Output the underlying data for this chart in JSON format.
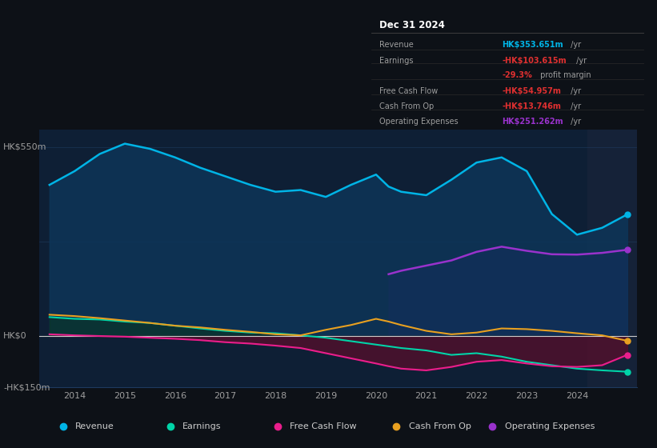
{
  "background_color": "#0d1117",
  "plot_bg_color": "#0e1f35",
  "grid_color": "#1e3a5f",
  "text_color": "#9e9e9e",
  "title_color": "#ffffff",
  "ylim": [
    -150,
    600
  ],
  "ylabel_top": "HK$550m",
  "ylabel_zero": "HK$0",
  "ylabel_bottom": "-HK$150m",
  "years": [
    2013.5,
    2014.0,
    2014.5,
    2015.0,
    2015.5,
    2016.0,
    2016.5,
    2017.0,
    2017.5,
    2018.0,
    2018.5,
    2019.0,
    2019.5,
    2020.0,
    2020.25,
    2020.5,
    2021.0,
    2021.5,
    2022.0,
    2022.5,
    2023.0,
    2023.5,
    2024.0,
    2024.5,
    2025.0
  ],
  "revenue": [
    440,
    480,
    530,
    560,
    545,
    520,
    490,
    465,
    440,
    420,
    425,
    405,
    440,
    470,
    435,
    420,
    410,
    455,
    505,
    520,
    480,
    355,
    295,
    315,
    354
  ],
  "earnings": [
    55,
    50,
    48,
    42,
    38,
    30,
    22,
    15,
    10,
    8,
    2,
    -5,
    -15,
    -25,
    -30,
    -35,
    -42,
    -55,
    -50,
    -60,
    -75,
    -85,
    -95,
    -100,
    -104
  ],
  "free_cash_flow": [
    5,
    2,
    0,
    -2,
    -5,
    -8,
    -12,
    -18,
    -22,
    -28,
    -35,
    -50,
    -65,
    -80,
    -88,
    -95,
    -100,
    -90,
    -75,
    -70,
    -80,
    -88,
    -90,
    -85,
    -55
  ],
  "cash_from_op": [
    62,
    58,
    52,
    45,
    38,
    30,
    25,
    18,
    12,
    5,
    2,
    18,
    32,
    50,
    42,
    32,
    15,
    5,
    10,
    22,
    20,
    15,
    8,
    2,
    -14
  ],
  "operating_expenses": [
    0,
    0,
    0,
    0,
    0,
    0,
    0,
    0,
    0,
    0,
    0,
    0,
    0,
    0,
    180,
    190,
    205,
    220,
    245,
    260,
    248,
    238,
    237,
    242,
    251
  ],
  "colors": {
    "revenue": "#00b4e6",
    "earnings": "#00d4a8",
    "free_cash_flow": "#e91e8c",
    "cash_from_op": "#e8a020",
    "operating_expenses": "#9932cc"
  },
  "fill_colors": {
    "revenue": "#0d3558",
    "earnings": "#0a3528",
    "free_cash_flow": "#5c0d2a",
    "operating_expenses": "#2e1060"
  },
  "info_box": {
    "title": "Dec 31 2024",
    "rows": [
      {
        "label": "Revenue",
        "value": "HK$353.651m",
        "unit": " /yr",
        "value_color": "#00b4e6"
      },
      {
        "label": "Earnings",
        "value": "-HK$103.615m",
        "unit": " /yr",
        "value_color": "#e03030"
      },
      {
        "label": "",
        "value": "-29.3%",
        "unit": " profit margin",
        "value_color": "#e03030"
      },
      {
        "label": "Free Cash Flow",
        "value": "-HK$54.957m",
        "unit": " /yr",
        "value_color": "#e03030"
      },
      {
        "label": "Cash From Op",
        "value": "-HK$13.746m",
        "unit": " /yr",
        "value_color": "#e03030"
      },
      {
        "label": "Operating Expenses",
        "value": "HK$251.262m",
        "unit": " /yr",
        "value_color": "#9932cc"
      }
    ]
  },
  "legend_items": [
    {
      "label": "Revenue",
      "color": "#00b4e6"
    },
    {
      "label": "Earnings",
      "color": "#00d4a8"
    },
    {
      "label": "Free Cash Flow",
      "color": "#e91e8c"
    },
    {
      "label": "Cash From Op",
      "color": "#e8a020"
    },
    {
      "label": "Operating Expenses",
      "color": "#9932cc"
    }
  ],
  "xticks": [
    2014,
    2015,
    2016,
    2017,
    2018,
    2019,
    2020,
    2021,
    2022,
    2023,
    2024
  ],
  "forecast_start": 2024.2,
  "shaded_region_color": "#152238"
}
